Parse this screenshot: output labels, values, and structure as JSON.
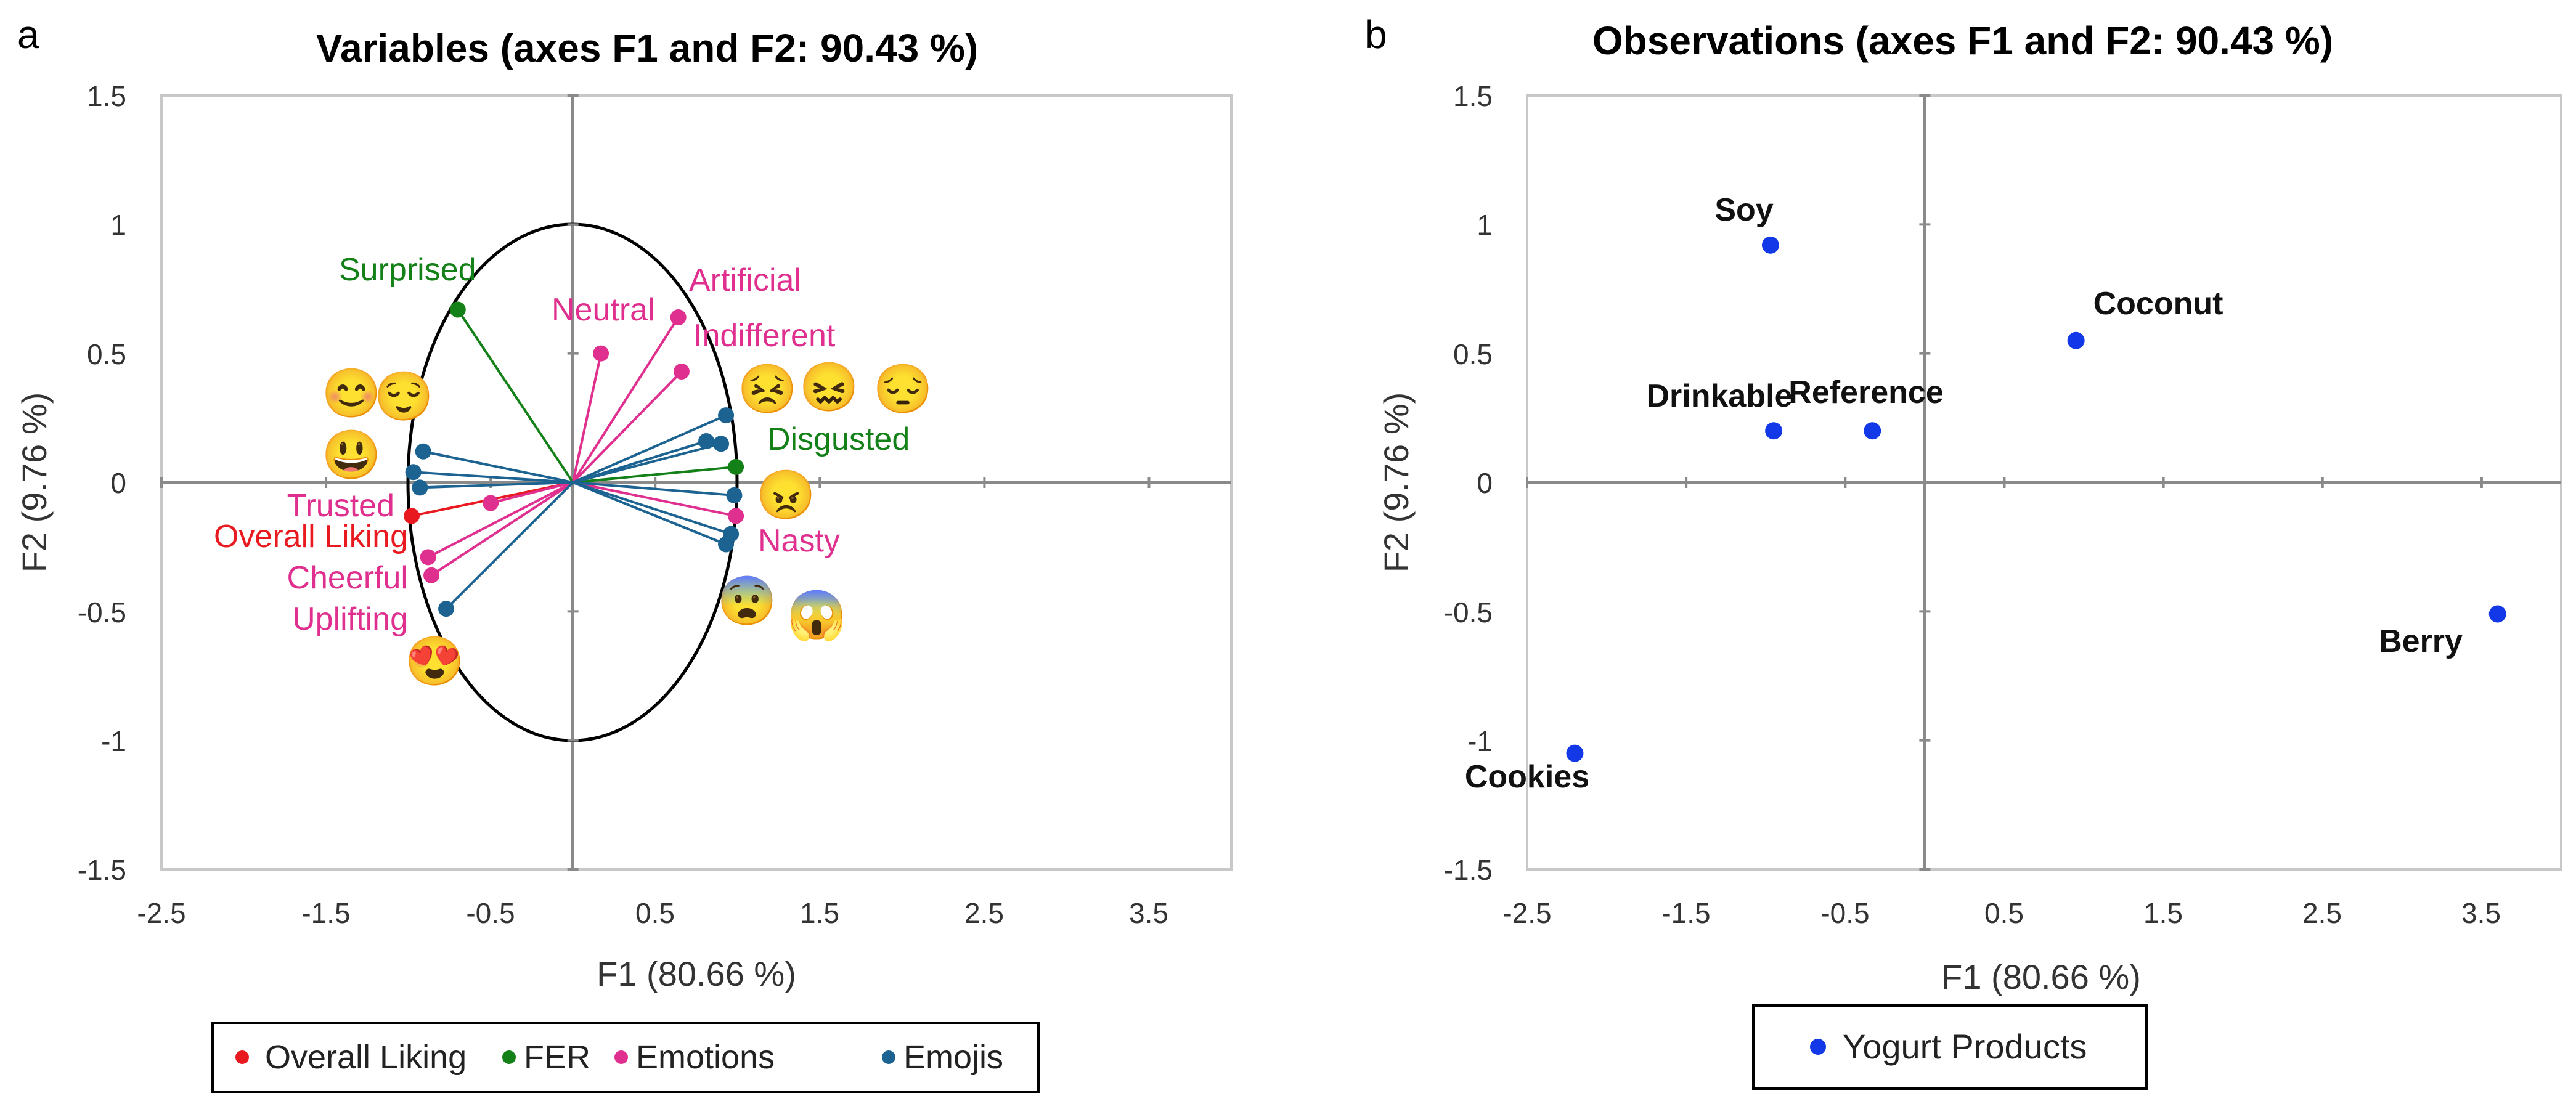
{
  "chart_data": [
    {
      "panel_letter": "a",
      "type": "scatter",
      "title": "Variables (axes F1 and F2: 90.43 %)",
      "xlabel": "F1 (80.66 %)",
      "ylabel": "F2 (9.76 %)",
      "xlim": [
        -2.5,
        4.0
      ],
      "ylim": [
        -1.5,
        1.5
      ],
      "x_ticks": [
        "-2.5",
        "-1.5",
        "-0.5",
        "0.5",
        "1.5",
        "2.5",
        "3.5"
      ],
      "y_ticks": [
        "1.5",
        "1",
        "0.5",
        "0",
        "-0.5",
        "-1",
        "-1.5"
      ],
      "grid": false,
      "correlation_circle_radius": 1,
      "colors": {
        "Overall Liking": "#e8191f",
        "FER": "#138018",
        "Emotions": "#e0308f",
        "Emojis": "#1c6391"
      },
      "legend": [
        "Overall Liking",
        "FER",
        "Emotions",
        "Emojis"
      ],
      "series": [
        {
          "name": "Overall Liking",
          "points": [
            {
              "x": -0.98,
              "y": -0.13
            }
          ]
        },
        {
          "name": "FER",
          "points": [
            {
              "x": -0.7,
              "y": 0.67
            },
            {
              "x": 0.99,
              "y": 0.06
            }
          ]
        },
        {
          "name": "Emotions",
          "points": [
            {
              "x": 0.17,
              "y": 0.5
            },
            {
              "x": 0.64,
              "y": 0.64
            },
            {
              "x": 0.66,
              "y": 0.43
            },
            {
              "x": -0.5,
              "y": -0.08
            },
            {
              "x": -0.88,
              "y": -0.29
            },
            {
              "x": -0.86,
              "y": -0.36
            },
            {
              "x": 0.99,
              "y": -0.13
            }
          ]
        },
        {
          "name": "Emojis",
          "points": [
            {
              "x": -0.91,
              "y": 0.12
            },
            {
              "x": -0.97,
              "y": 0.04
            },
            {
              "x": -0.93,
              "y": -0.02
            },
            {
              "x": -0.77,
              "y": -0.49
            },
            {
              "x": 0.93,
              "y": 0.26
            },
            {
              "x": 0.81,
              "y": 0.16
            },
            {
              "x": 0.9,
              "y": 0.15
            },
            {
              "x": 0.98,
              "y": -0.05
            },
            {
              "x": 0.96,
              "y": -0.2
            },
            {
              "x": 0.93,
              "y": -0.24
            }
          ]
        }
      ],
      "annotations": [
        {
          "text": "Surprised",
          "color": "#138018"
        },
        {
          "text": "Neutral",
          "color": "#e0308f"
        },
        {
          "text": "Artificial",
          "color": "#e0308f"
        },
        {
          "text": "Indifferent",
          "color": "#e0308f"
        },
        {
          "text": "Disgusted",
          "color": "#138018"
        },
        {
          "text": "Trusted",
          "color": "#e0308f"
        },
        {
          "text": "Overall Liking",
          "color": "#e8191f"
        },
        {
          "text": "Cheerful",
          "color": "#e0308f"
        },
        {
          "text": "Uplifting",
          "color": "#e0308f"
        },
        {
          "text": "Nasty",
          "color": "#e0308f"
        }
      ],
      "emoji_labels": [
        {
          "name": "smiling-face-icon",
          "glyph": "😊"
        },
        {
          "name": "relieved-face-icon",
          "glyph": "😌"
        },
        {
          "name": "grinning-face-icon",
          "glyph": "😃"
        },
        {
          "name": "heart-eyes-face-icon",
          "glyph": "😍"
        },
        {
          "name": "tired-face-icon",
          "glyph": "😣"
        },
        {
          "name": "confounded-face-icon",
          "glyph": "😖"
        },
        {
          "name": "pensive-face-icon",
          "glyph": "😔"
        },
        {
          "name": "angry-face-icon",
          "glyph": "😠"
        },
        {
          "name": "fearful-face-icon",
          "glyph": "😨"
        },
        {
          "name": "screaming-face-icon",
          "glyph": "😱"
        }
      ]
    },
    {
      "panel_letter": "b",
      "type": "scatter",
      "title": "Observations (axes F1 and F2: 90.43 %)",
      "xlabel": "F1 (80.66 %)",
      "ylabel": "F2 (9.76 %)",
      "xlim": [
        -2.5,
        4.0
      ],
      "ylim": [
        -1.5,
        1.5
      ],
      "x_ticks": [
        "-2.5",
        "-1.5",
        "-0.5",
        "0.5",
        "1.5",
        "2.5",
        "3.5"
      ],
      "y_ticks": [
        "1.5",
        "1",
        "0.5",
        "0",
        "-0.5",
        "-1",
        "-1.5"
      ],
      "grid": false,
      "colors": {
        "Yogurt Products": "#1238e8"
      },
      "legend": [
        "Yogurt Products"
      ],
      "series": [
        {
          "name": "Yogurt Products",
          "points": [
            {
              "label": "Soy",
              "x": -0.97,
              "y": 0.92
            },
            {
              "label": "Coconut",
              "x": 0.95,
              "y": 0.55
            },
            {
              "label": "Drinkable",
              "x": -0.95,
              "y": 0.2
            },
            {
              "label": "Reference",
              "x": -0.33,
              "y": 0.2
            },
            {
              "label": "Berry",
              "x": 3.6,
              "y": -0.51
            },
            {
              "label": "Cookies",
              "x": -2.2,
              "y": -1.05
            }
          ]
        }
      ]
    }
  ]
}
